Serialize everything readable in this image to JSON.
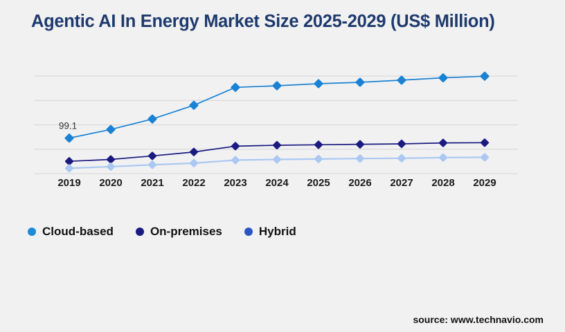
{
  "page": {
    "title": "Agentic AI In Energy Market Size 2025-2029 (US$ Million)",
    "source": "source: www.technavio.com"
  },
  "colors": {
    "background": "#f1f1f2",
    "title": "#1e3a6d",
    "gridline": "#d9d9db",
    "axis_label": "#1a1a1a",
    "annotation": "#333333",
    "source_text": "#111111"
  },
  "chart_data": {
    "type": "line",
    "title": "Agentic AI In Energy Market Size 2025-2029 (US$ Million)",
    "xlabel": "",
    "ylabel": "US$ Million",
    "x": [
      2019,
      2020,
      2021,
      2022,
      2023,
      2024,
      2025,
      2026,
      2027,
      2028,
      2029
    ],
    "series": [
      {
        "name": "Cloud-based",
        "color": "#1a82d4",
        "legend_color": "#1f8ad6",
        "marker": "diamond",
        "values": [
          99.1,
          123.1,
          152.3,
          190.6,
          240.5,
          245.0,
          250.8,
          254.7,
          260.6,
          267.1,
          271.6
        ]
      },
      {
        "name": "On-premises",
        "color": "#1a1a80",
        "legend_color": "#1a1a80",
        "marker": "diamond",
        "values": [
          34.4,
          39.5,
          49.3,
          60.3,
          76.5,
          79.1,
          80.4,
          81.7,
          83.0,
          85.6,
          86.2
        ]
      },
      {
        "name": "Hybrid",
        "color": "#abc8f2",
        "legend_color": "#2b55c4",
        "marker": "diamond",
        "values": [
          14.9,
          19.4,
          24.6,
          29.2,
          37.6,
          39.5,
          40.8,
          42.1,
          42.8,
          44.7,
          45.4
        ]
      }
    ],
    "annotations": [
      {
        "series": "Cloud-based",
        "x": 2019,
        "label": "99.1"
      }
    ],
    "ylim": [
      0,
      272
    ],
    "gridlines": 5,
    "grid": "horizontal-only",
    "y_axis_labels_visible": false,
    "legend_position": "bottom-left"
  }
}
